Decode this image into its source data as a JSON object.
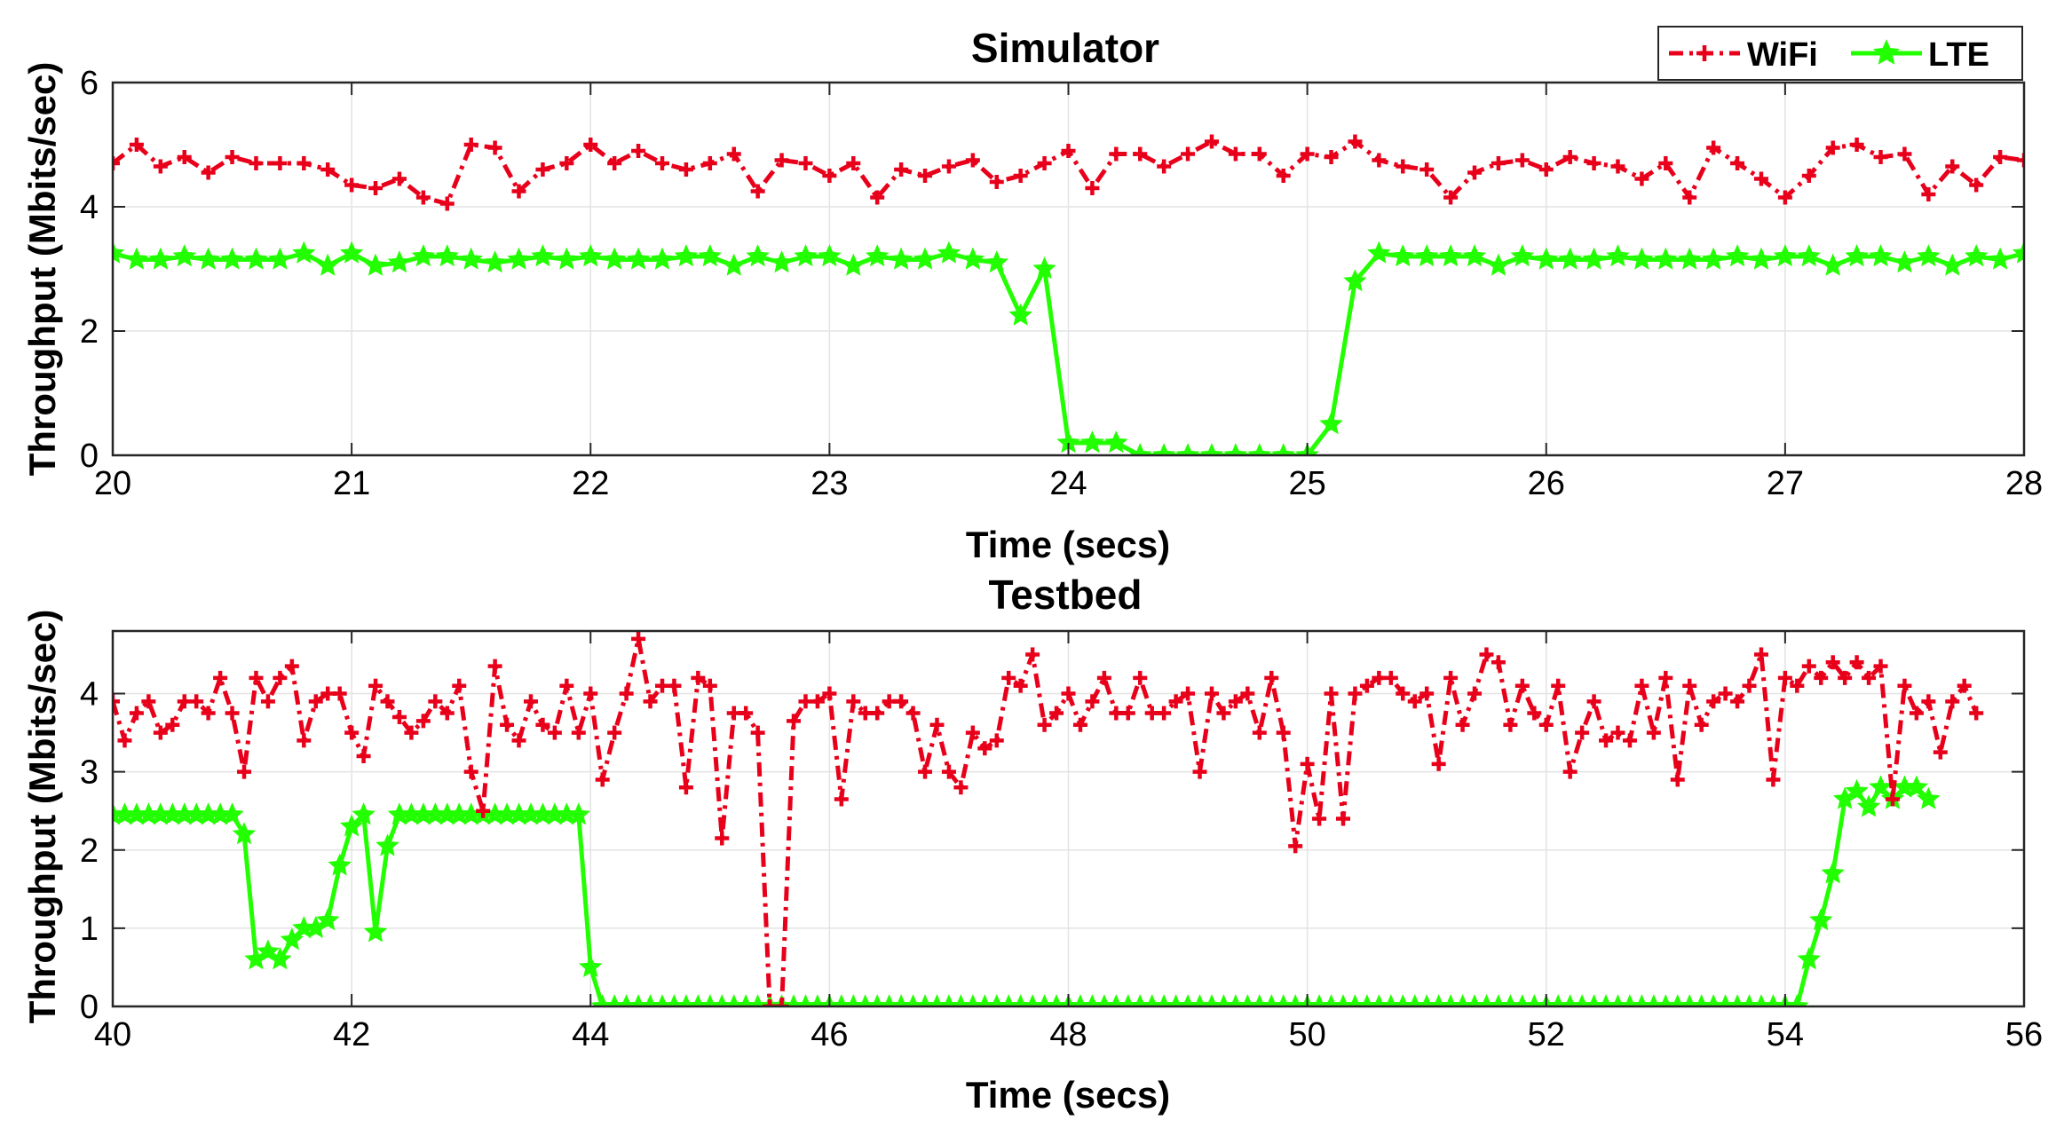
{
  "chart_data": [
    {
      "type": "line",
      "title": "Simulator",
      "xlabel": "Time (secs)",
      "ylabel": "Throughput (Mbits/sec)",
      "xlim": [
        20,
        28
      ],
      "ylim": [
        0,
        6
      ],
      "xticks": [
        "20",
        "21",
        "22",
        "23",
        "24",
        "25",
        "26",
        "27",
        "28"
      ],
      "yticks": [
        "0",
        "2",
        "4",
        "6"
      ],
      "grid": true,
      "legend": {
        "placement": "top-right",
        "entries": [
          "WiFi",
          "LTE"
        ]
      },
      "x_start": 20,
      "x_step": 0.1,
      "series": [
        {
          "name": "WiFi",
          "color": "#e8001b",
          "style": "dashdot",
          "marker": "plus",
          "values": [
            4.7,
            5.0,
            4.65,
            4.8,
            4.55,
            4.8,
            4.7,
            4.7,
            4.7,
            4.6,
            4.35,
            4.3,
            4.45,
            4.15,
            4.05,
            5.0,
            4.95,
            4.25,
            4.6,
            4.7,
            5.0,
            4.7,
            4.9,
            4.7,
            4.6,
            4.7,
            4.85,
            4.25,
            4.75,
            4.7,
            4.5,
            4.7,
            4.15,
            4.6,
            4.5,
            4.65,
            4.75,
            4.4,
            4.5,
            4.7,
            4.9,
            4.3,
            4.85,
            4.85,
            4.65,
            4.85,
            5.05,
            4.85,
            4.85,
            4.5,
            4.85,
            4.8,
            5.05,
            4.75,
            4.65,
            4.6,
            4.15,
            4.55,
            4.7,
            4.75,
            4.6,
            4.8,
            4.7,
            4.65,
            4.45,
            4.7,
            4.15,
            4.95,
            4.7,
            4.45,
            4.15,
            4.5,
            4.95,
            5.0,
            4.8,
            4.85,
            4.2,
            4.65,
            4.35,
            4.8,
            4.75
          ]
        },
        {
          "name": "LTE",
          "color": "#22ff00",
          "style": "solid",
          "marker": "star",
          "values": [
            3.25,
            3.15,
            3.15,
            3.2,
            3.15,
            3.15,
            3.15,
            3.15,
            3.25,
            3.05,
            3.25,
            3.05,
            3.1,
            3.2,
            3.2,
            3.15,
            3.1,
            3.15,
            3.2,
            3.15,
            3.2,
            3.15,
            3.15,
            3.15,
            3.2,
            3.2,
            3.05,
            3.2,
            3.1,
            3.2,
            3.2,
            3.05,
            3.2,
            3.15,
            3.15,
            3.25,
            3.15,
            3.1,
            2.25,
            3.0,
            0.2,
            0.2,
            0.2,
            0.0,
            0.0,
            0.0,
            0.0,
            0.0,
            0.0,
            0.0,
            0.0,
            0.5,
            2.8,
            3.25,
            3.2,
            3.2,
            3.2,
            3.2,
            3.05,
            3.2,
            3.15,
            3.15,
            3.15,
            3.2,
            3.15,
            3.15,
            3.15,
            3.15,
            3.2,
            3.15,
            3.2,
            3.2,
            3.05,
            3.2,
            3.2,
            3.1,
            3.2,
            3.05,
            3.2,
            3.15,
            3.25
          ]
        }
      ]
    },
    {
      "type": "line",
      "title": "Testbed",
      "xlabel": "Time (secs)",
      "ylabel": "Throughput (Mbits/sec)",
      "xlim": [
        40,
        56
      ],
      "ylim": [
        0,
        4.8
      ],
      "xticks": [
        "40",
        "42",
        "44",
        "46",
        "48",
        "50",
        "52",
        "54",
        "56"
      ],
      "yticks": [
        "0",
        "1",
        "2",
        "3",
        "4"
      ],
      "grid": true,
      "x_start": 40,
      "x_step": 0.1,
      "series": [
        {
          "name": "WiFi",
          "color": "#e8001b",
          "style": "dashdot",
          "marker": "plus",
          "values": [
            3.9,
            3.4,
            3.75,
            3.9,
            3.5,
            3.6,
            3.9,
            3.9,
            3.75,
            4.2,
            3.75,
            3.0,
            4.2,
            3.9,
            4.2,
            4.35,
            3.4,
            3.9,
            4.0,
            4.0,
            3.5,
            3.2,
            4.1,
            3.9,
            3.7,
            3.5,
            3.65,
            3.9,
            3.75,
            4.1,
            3.0,
            2.5,
            4.35,
            3.6,
            3.4,
            3.9,
            3.6,
            3.5,
            4.1,
            3.5,
            4.0,
            2.9,
            3.5,
            4.0,
            4.7,
            3.9,
            4.1,
            4.1,
            2.8,
            4.2,
            4.1,
            2.15,
            3.75,
            3.75,
            3.5,
            0.0,
            0.0,
            3.65,
            3.9,
            3.9,
            4.0,
            2.65,
            3.9,
            3.75,
            3.75,
            3.9,
            3.9,
            3.75,
            3.0,
            3.6,
            3.0,
            2.8,
            3.5,
            3.3,
            3.4,
            4.2,
            4.1,
            4.5,
            3.6,
            3.75,
            4.0,
            3.6,
            3.9,
            4.2,
            3.75,
            3.75,
            4.2,
            3.75,
            3.75,
            3.9,
            4.0,
            3.0,
            4.0,
            3.75,
            3.9,
            4.0,
            3.5,
            4.2,
            3.5,
            2.05,
            3.1,
            2.4,
            4.0,
            2.4,
            4.0,
            4.1,
            4.2,
            4.2,
            4.0,
            3.9,
            4.0,
            3.1,
            4.2,
            3.6,
            4.0,
            4.5,
            4.4,
            3.6,
            4.1,
            3.75,
            3.6,
            4.1,
            3.0,
            3.5,
            3.9,
            3.4,
            3.5,
            3.4,
            4.1,
            3.5,
            4.2,
            2.9,
            4.1,
            3.6,
            3.9,
            4.0,
            3.9,
            4.1,
            4.5,
            2.9,
            4.2,
            4.1,
            4.35,
            4.2,
            4.4,
            4.2,
            4.4,
            4.2,
            4.35,
            2.65,
            4.1,
            3.75,
            3.9,
            3.25,
            3.9,
            4.1,
            3.75
          ]
        },
        {
          "name": "LTE",
          "color": "#22ff00",
          "style": "solid",
          "marker": "star",
          "values": [
            2.45,
            2.45,
            2.45,
            2.45,
            2.45,
            2.45,
            2.45,
            2.45,
            2.45,
            2.45,
            2.45,
            2.2,
            0.6,
            0.7,
            0.6,
            0.85,
            1.0,
            1.0,
            1.1,
            1.8,
            2.3,
            2.45,
            0.95,
            2.05,
            2.45,
            2.45,
            2.45,
            2.45,
            2.45,
            2.45,
            2.45,
            2.45,
            2.45,
            2.45,
            2.45,
            2.45,
            2.45,
            2.45,
            2.45,
            2.45,
            0.5,
            0.0,
            0.0,
            0.0,
            0.0,
            0.0,
            0.0,
            0.0,
            0.0,
            0.0,
            0.0,
            0.0,
            0.0,
            0.0,
            0.0,
            0.0,
            0.0,
            0.0,
            0.0,
            0.0,
            0.0,
            0.0,
            0.0,
            0.0,
            0.0,
            0.0,
            0.0,
            0.0,
            0.0,
            0.0,
            0.0,
            0.0,
            0.0,
            0.0,
            0.0,
            0.0,
            0.0,
            0.0,
            0.0,
            0.0,
            0.0,
            0.0,
            0.0,
            0.0,
            0.0,
            0.0,
            0.0,
            0.0,
            0.0,
            0.0,
            0.0,
            0.0,
            0.0,
            0.0,
            0.0,
            0.0,
            0.0,
            0.0,
            0.0,
            0.0,
            0.0,
            0.0,
            0.0,
            0.0,
            0.0,
            0.0,
            0.0,
            0.0,
            0.0,
            0.0,
            0.0,
            0.0,
            0.0,
            0.0,
            0.0,
            0.0,
            0.0,
            0.0,
            0.0,
            0.0,
            0.0,
            0.0,
            0.0,
            0.0,
            0.0,
            0.0,
            0.0,
            0.0,
            0.0,
            0.0,
            0.0,
            0.0,
            0.0,
            0.0,
            0.0,
            0.0,
            0.0,
            0.0,
            0.0,
            0.0,
            0.0,
            0.0,
            0.6,
            1.1,
            1.7,
            2.65,
            2.75,
            2.55,
            2.8,
            2.65,
            2.8,
            2.8,
            2.65
          ]
        }
      ]
    }
  ]
}
